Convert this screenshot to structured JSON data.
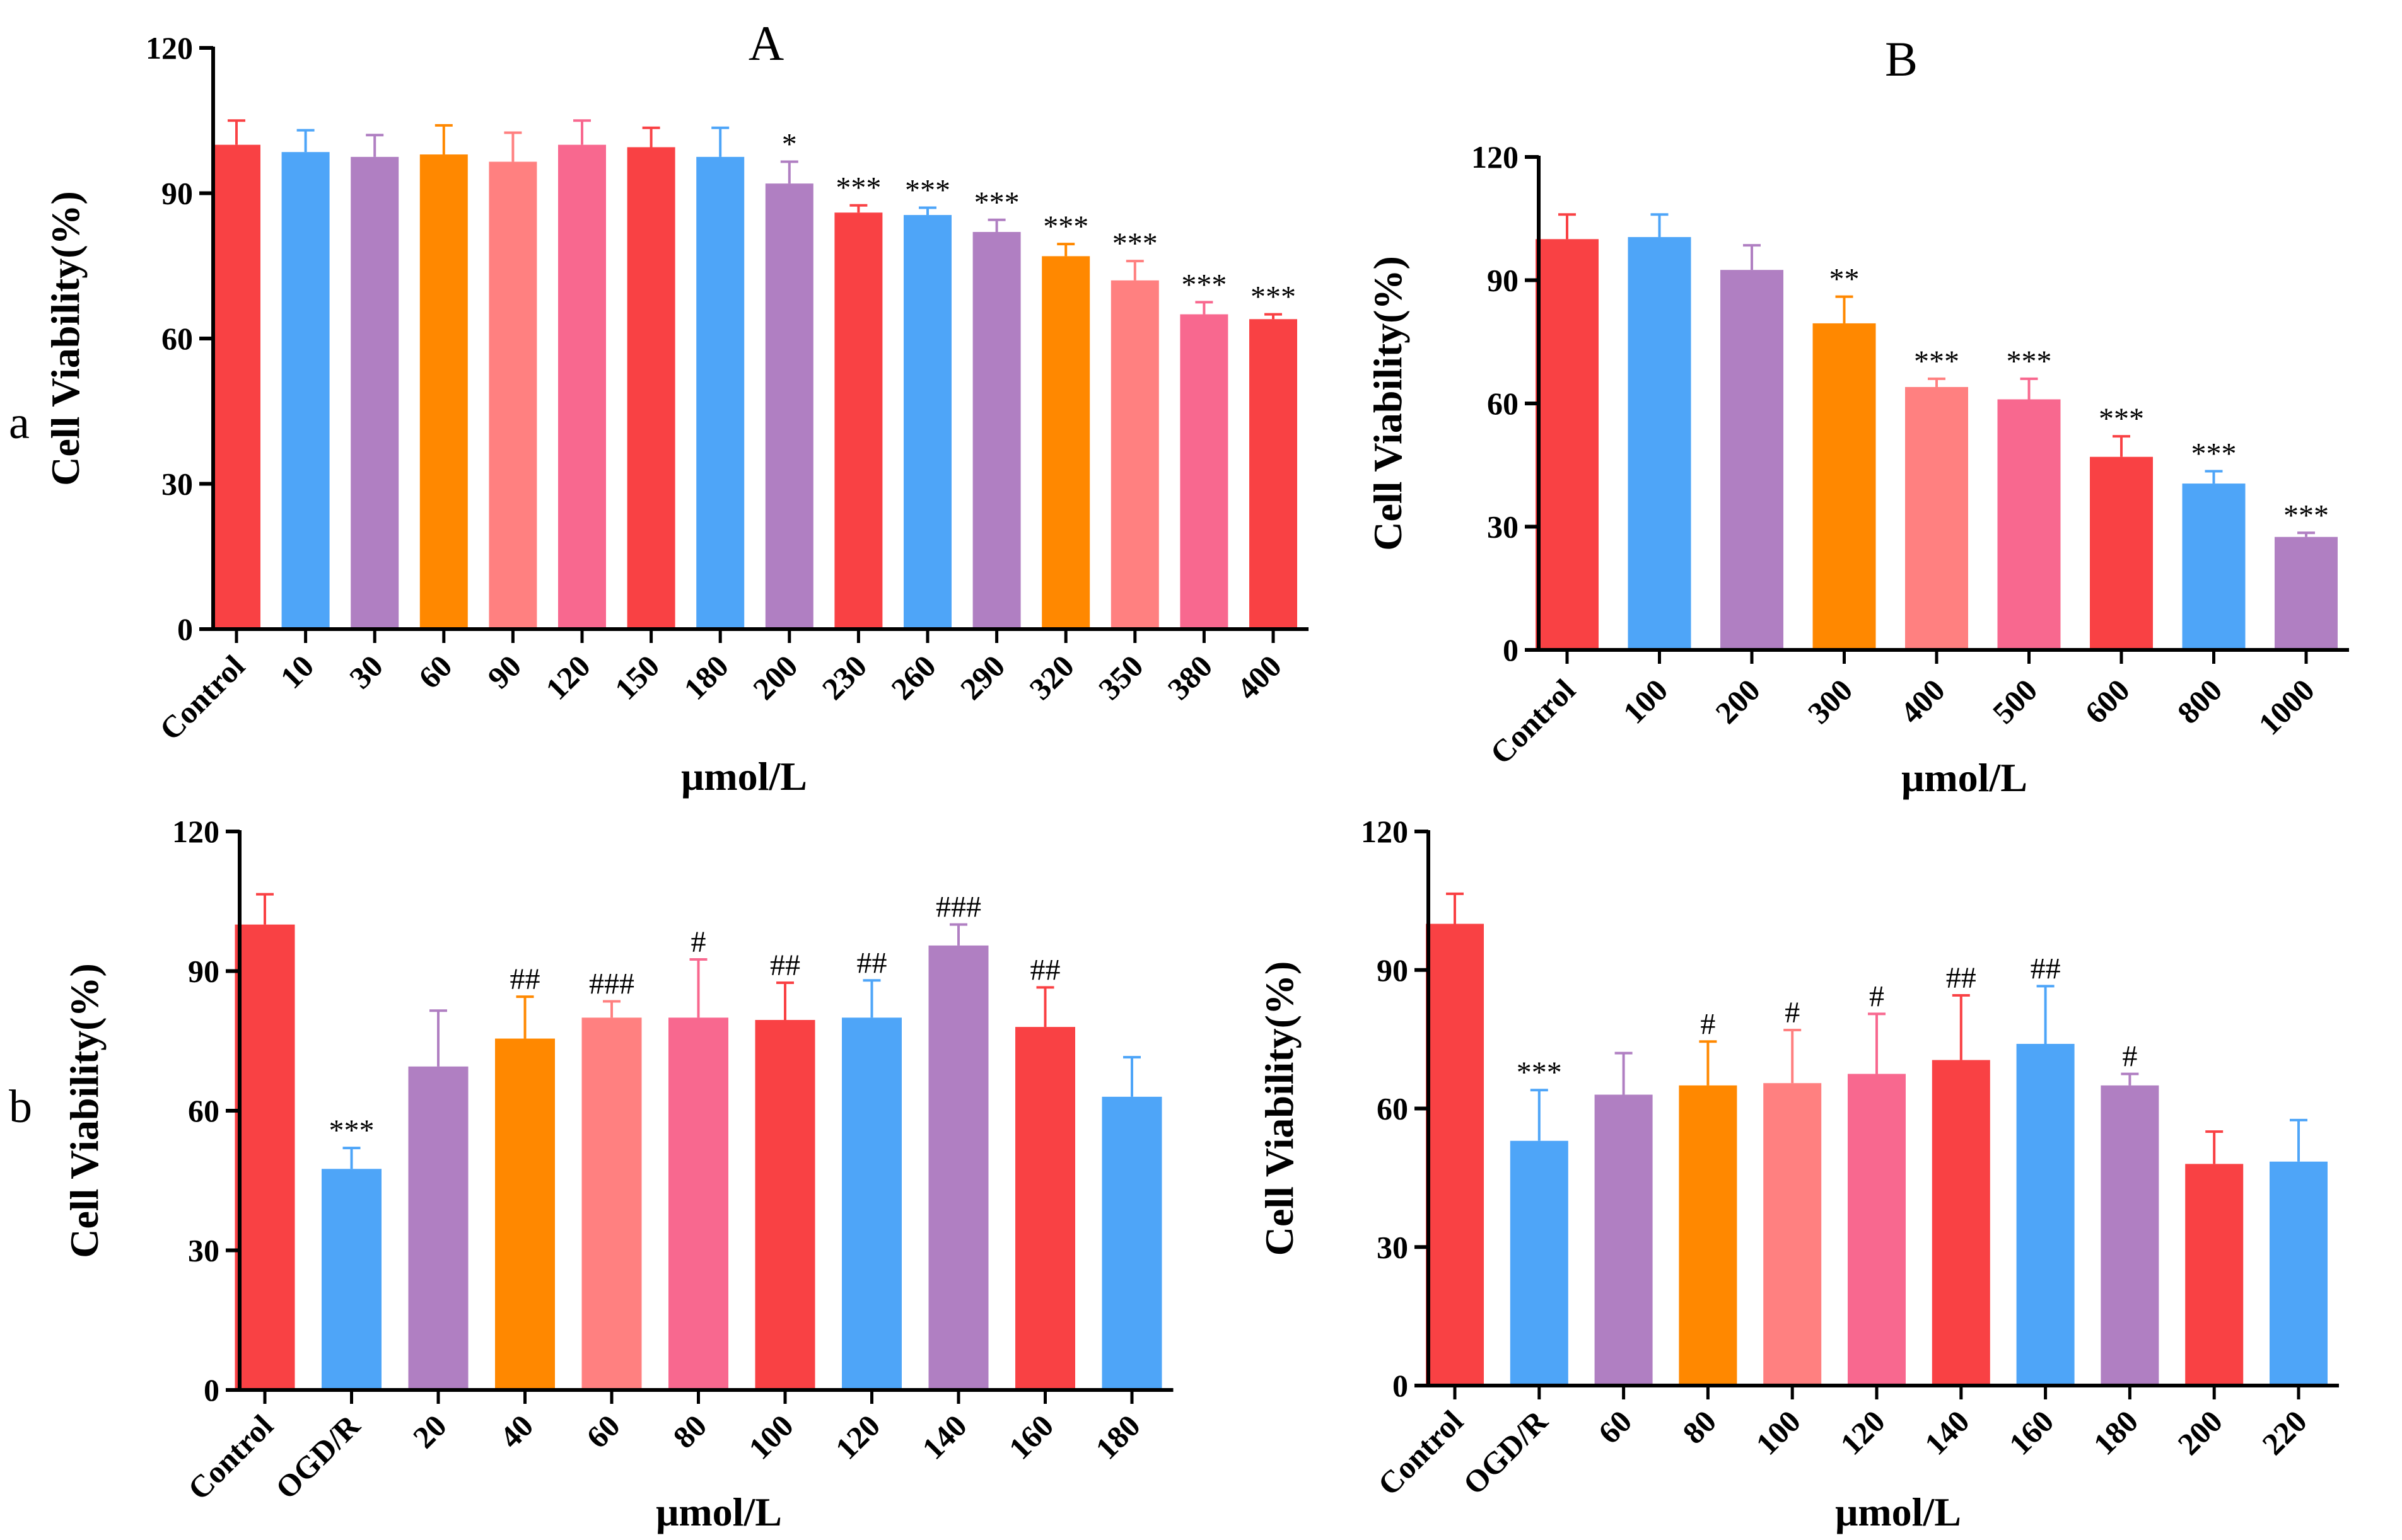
{
  "row_labels": {
    "a": "a",
    "b": "b"
  },
  "chart_data": [
    {
      "id": "A",
      "type": "bar",
      "panel_label": "A",
      "title": "",
      "xlabel": "μmol/L",
      "ylabel": "Cell Viability(%)",
      "ylim": [
        0,
        120
      ],
      "yticks": [
        0,
        30,
        60,
        90,
        120
      ],
      "categories": [
        "Control",
        "10",
        "30",
        "60",
        "90",
        "120",
        "150",
        "180",
        "200",
        "230",
        "260",
        "290",
        "320",
        "350",
        "380",
        "400"
      ],
      "values": [
        100,
        98.5,
        97.5,
        98,
        96.5,
        100,
        99.5,
        97.5,
        92,
        86,
        85.5,
        82,
        77,
        72,
        65,
        64
      ],
      "errors": [
        5,
        4.5,
        4.5,
        6,
        6,
        5,
        4,
        6,
        4.5,
        1.5,
        1.5,
        2.5,
        2.5,
        4,
        2.5,
        1
      ],
      "significance": [
        "",
        "",
        "",
        "",
        "",
        "",
        "",
        "",
        "*",
        "***",
        "***",
        "***",
        "***",
        "***",
        "***",
        "***"
      ],
      "colors": [
        "#f94144",
        "#4ea5f8",
        "#b07fc2",
        "#ff8800",
        "#ff8080",
        "#f8688f",
        "#f94144",
        "#4ea5f8",
        "#b07fc2",
        "#f94144",
        "#4ea5f8",
        "#b07fc2",
        "#ff8800",
        "#ff8080",
        "#f8688f",
        "#f94144"
      ]
    },
    {
      "id": "B",
      "type": "bar",
      "panel_label": "B",
      "title": "",
      "xlabel": "μmol/L",
      "ylabel": "Cell Viability(%)",
      "ylim": [
        0,
        120
      ],
      "yticks": [
        0,
        30,
        60,
        90,
        120
      ],
      "categories": [
        "Control",
        "100",
        "200",
        "300",
        "400",
        "500",
        "600",
        "800",
        "1000"
      ],
      "values": [
        100,
        100.5,
        92.5,
        79.5,
        64,
        61,
        47,
        40.5,
        27.5
      ],
      "errors": [
        6,
        5.5,
        6,
        6.5,
        2,
        5,
        5,
        3,
        1
      ],
      "significance": [
        "",
        "",
        "",
        "**",
        "***",
        "***",
        "***",
        "***",
        "***"
      ],
      "colors": [
        "#f94144",
        "#4ea5f8",
        "#b07fc2",
        "#ff8800",
        "#ff8080",
        "#f8688f",
        "#f94144",
        "#4ea5f8",
        "#b07fc2"
      ]
    },
    {
      "id": "C",
      "type": "bar",
      "panel_label": "",
      "title": "",
      "xlabel": "μmol/L",
      "ylabel": "Cell Viability(%)",
      "ylim": [
        0,
        120
      ],
      "yticks": [
        0,
        30,
        60,
        90,
        120
      ],
      "categories": [
        "Control",
        "OGD/R",
        "20",
        "40",
        "60",
        "80",
        "100",
        "120",
        "140",
        "160",
        "180"
      ],
      "values": [
        100,
        47.5,
        69.5,
        75.5,
        80,
        80,
        79.5,
        80,
        95.5,
        78,
        63
      ],
      "errors": [
        6.5,
        4.5,
        12,
        9,
        3.5,
        12.5,
        8,
        8,
        4.5,
        8.5,
        8.5
      ],
      "significance": [
        "",
        "***",
        "",
        "##",
        "###",
        "#",
        "##",
        "##",
        "###",
        "##",
        ""
      ],
      "colors": [
        "#f94144",
        "#4ea5f8",
        "#b07fc2",
        "#ff8800",
        "#ff8080",
        "#f8688f",
        "#f94144",
        "#4ea5f8",
        "#b07fc2",
        "#f94144",
        "#4ea5f8"
      ]
    },
    {
      "id": "D",
      "type": "bar",
      "panel_label": "",
      "title": "",
      "xlabel": "μmol/L",
      "ylabel": "Cell Viability(%)",
      "ylim": [
        0,
        120
      ],
      "yticks": [
        0,
        30,
        60,
        90,
        120
      ],
      "categories": [
        "Control",
        "OGD/R",
        "60",
        "80",
        "100",
        "120",
        "140",
        "160",
        "180",
        "200",
        "220"
      ],
      "values": [
        100,
        53,
        63,
        65,
        65.5,
        67.5,
        70.5,
        74,
        65,
        48,
        48.5
      ],
      "errors": [
        6.5,
        11,
        9,
        9.5,
        11.5,
        13,
        14,
        12.5,
        2.5,
        7,
        9
      ],
      "significance": [
        "",
        "***",
        "",
        "#",
        "#",
        "#",
        "##",
        "##",
        "#",
        "",
        ""
      ],
      "colors": [
        "#f94144",
        "#4ea5f8",
        "#b07fc2",
        "#ff8800",
        "#ff8080",
        "#f8688f",
        "#f94144",
        "#4ea5f8",
        "#b07fc2",
        "#f94144",
        "#4ea5f8"
      ]
    }
  ]
}
